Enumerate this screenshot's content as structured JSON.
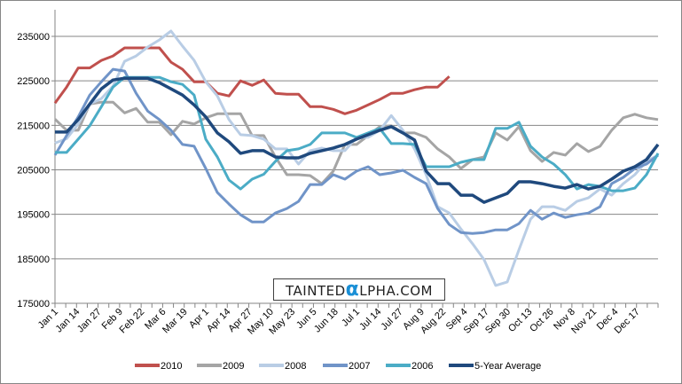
{
  "chart_data": {
    "type": "line",
    "title": "",
    "xlabel": "",
    "ylabel": "",
    "ylim": [
      175000,
      235000
    ],
    "yticks": [
      "175000",
      "185000",
      "195000",
      "205000",
      "215000",
      "225000",
      "235000"
    ],
    "xlim_days": [
      0,
      364
    ],
    "xtick_labels": [
      "Jan 1",
      "Jan 14",
      "Jan 27",
      "Feb 9",
      "Feb 22",
      "Mar 6",
      "Mar 19",
      "Apr 1",
      "Apr 14",
      "Apr 27",
      "May 10",
      "May 23",
      "Jun 5",
      "Jun 18",
      "Jul 1",
      "Jul 14",
      "Jul 27",
      "Aug 9",
      "Aug 22",
      "Sep 4",
      "Sep 17",
      "Sep 30",
      "Oct 13",
      "Oct 26",
      "Nov 8",
      "Nov 21",
      "Dec 4",
      "Dec 17"
    ],
    "xtick_step_days": 13,
    "sample_step_days": 7,
    "grid": "horizontal",
    "legend_position": "bottom",
    "watermark": "TAINTEDαLPHA.COM",
    "series": [
      {
        "name": "2010",
        "color": "#c0504d",
        "values": [
          220000,
          223600,
          227900,
          227900,
          229600,
          230600,
          232400,
          232400,
          232400,
          232400,
          229200,
          227600,
          224800,
          224800,
          222200,
          221600,
          225000,
          224000,
          225200,
          222200,
          222000,
          222000,
          219200,
          219200,
          218600,
          217600,
          218400,
          219600,
          220800,
          222200,
          222200,
          223000,
          223600,
          223600,
          226000
        ]
      },
      {
        "name": "2009",
        "color": "#a5a5a5",
        "values": [
          216400,
          213900,
          213900,
          219800,
          220200,
          220200,
          217800,
          218800,
          215700,
          215700,
          212900,
          215900,
          215300,
          216700,
          217600,
          217600,
          217600,
          212700,
          212700,
          207900,
          203900,
          203900,
          203700,
          201900,
          204700,
          210700,
          210700,
          212700,
          214700,
          214900,
          213300,
          213300,
          212300,
          209700,
          207900,
          205300,
          207300,
          207900,
          213300,
          211700,
          214700,
          209300,
          206900,
          208900,
          208300,
          210900,
          209100,
          210300,
          213900,
          216700,
          217500,
          216700,
          216300
        ]
      },
      {
        "name": "2008",
        "color": "#b9cde5",
        "values": [
          211000,
          212000,
          215300,
          219800,
          221000,
          223800,
          229400,
          230600,
          232600,
          234200,
          236200,
          232800,
          229600,
          224800,
          221600,
          216300,
          212900,
          212700,
          211900,
          209700,
          209700,
          206300,
          209300,
          209900,
          209300,
          209300,
          212300,
          212300,
          213900,
          217200,
          213900,
          209700,
          203900,
          196700,
          195300,
          191700,
          188400,
          184800,
          179000,
          179800,
          187000,
          193900,
          196700,
          196700,
          195900,
          197900,
          198700,
          200700,
          199300,
          201900,
          203900,
          206900,
          208300
        ]
      },
      {
        "name": "2007",
        "color": "#7094c8",
        "values": [
          208300,
          212700,
          216900,
          221800,
          224800,
          227600,
          227200,
          222200,
          218200,
          216300,
          213900,
          210700,
          210300,
          205300,
          199900,
          197300,
          194900,
          193300,
          193300,
          195300,
          196300,
          197900,
          201700,
          201700,
          203900,
          202900,
          204700,
          205700,
          203900,
          204300,
          204900,
          203300,
          201900,
          196300,
          192700,
          190900,
          190700,
          190900,
          191500,
          191500,
          192900,
          195900,
          193900,
          195300,
          194300,
          194900,
          195300,
          196700,
          201900,
          203300,
          205300,
          206300,
          208300
        ]
      },
      {
        "name": "2006",
        "color": "#4bacc6",
        "values": [
          208900,
          208900,
          211900,
          214900,
          219200,
          223600,
          225800,
          225800,
          225800,
          225800,
          224800,
          224200,
          221800,
          211900,
          207900,
          202700,
          200700,
          202900,
          204000,
          206900,
          209300,
          209700,
          210700,
          213300,
          213300,
          213300,
          212300,
          213300,
          214300,
          210900,
          210900,
          210700,
          205700,
          205700,
          205700,
          206700,
          207300,
          207300,
          214300,
          214300,
          215700,
          210300,
          207900,
          206300,
          203900,
          200700,
          201700,
          201300,
          200300,
          200300,
          200900,
          203900,
          208700
        ]
      },
      {
        "name": "5-Year Average",
        "color": "#1f497d",
        "values": [
          213500,
          213500,
          216300,
          219800,
          223200,
          225200,
          225600,
          225600,
          225600,
          224600,
          223200,
          221800,
          219600,
          216900,
          213300,
          211300,
          208700,
          209300,
          209300,
          207900,
          207700,
          207700,
          208700,
          209300,
          209900,
          210700,
          211900,
          212900,
          213900,
          214700,
          213300,
          211700,
          204700,
          201900,
          201900,
          199300,
          199300,
          197700,
          198700,
          199700,
          202300,
          202300,
          201900,
          201300,
          200900,
          201700,
          200700,
          201300,
          202900,
          204700,
          205700,
          207300,
          210700
        ]
      }
    ]
  }
}
